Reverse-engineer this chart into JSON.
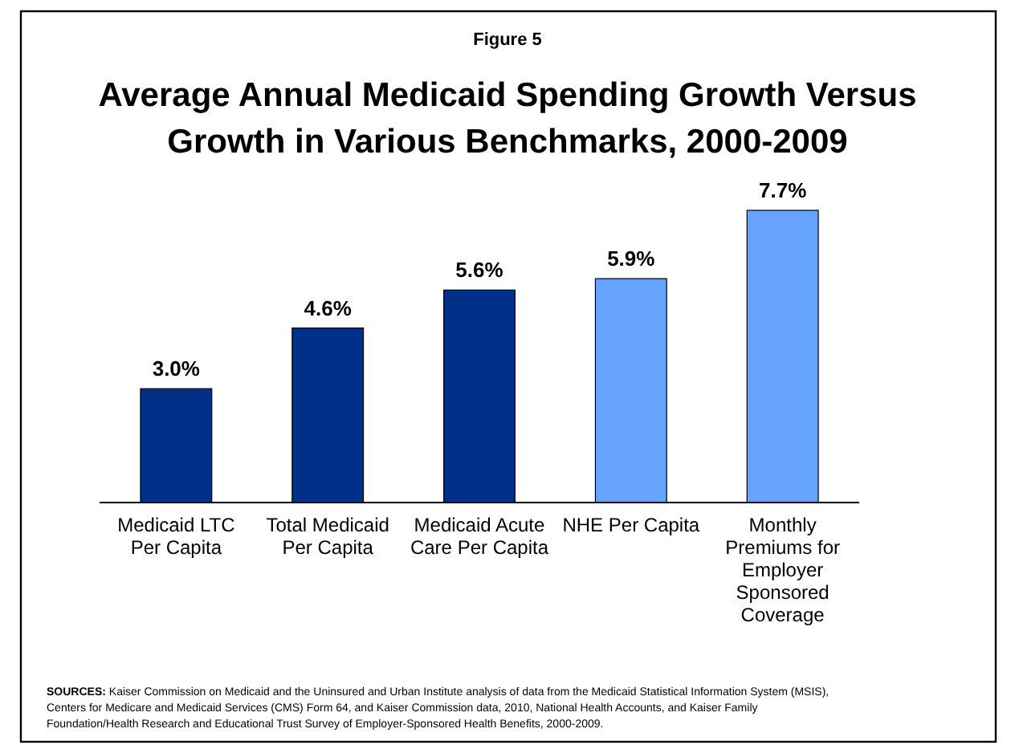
{
  "chart_data": {
    "type": "bar",
    "subtitle": "Figure 5",
    "title": "Average Annual Medicaid Spending Growth Versus Growth in Various Benchmarks, 2000-2009",
    "categories": [
      "Medicaid LTC Per Capita",
      "Total Medicaid Per Capita",
      "Medicaid Acute Care Per Capita",
      "NHE Per Capita",
      "Monthly Premiums for Employer Sponsored Coverage"
    ],
    "values": [
      3.0,
      4.6,
      5.6,
      5.9,
      7.7
    ],
    "colors": [
      "#003087",
      "#003087",
      "#003087",
      "#66a3ff",
      "#66a3ff"
    ],
    "value_labels": [
      "3.0%",
      "4.6%",
      "5.6%",
      "5.9%",
      "7.7%"
    ],
    "annotations": [
      "SOURCES: Kaiser Commission on Medicaid and the Uninsured and Urban Institute analysis of data from the Medicaid Statistical Information System (MSIS), Centers for Medicare and Medicaid Services (CMS) Form 64, and Kaiser Commission data, 2010, National Health Accounts, and Kaiser Family Foundation/Health Research and Educational Trust Survey of Employer-Sponsored Health Benefits, 2000-2009."
    ],
    "grid": false
  }
}
